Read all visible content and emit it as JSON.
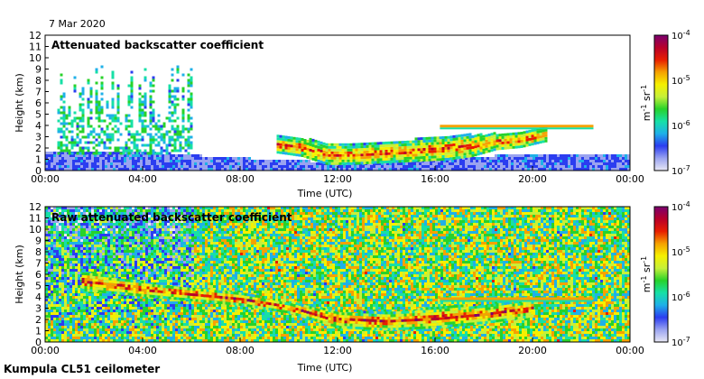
{
  "header": {
    "date": "7 Mar 2020",
    "footer": "Kumpula CL51 ceilometer"
  },
  "colors": {
    "frame": "#000000",
    "background": "#ffffff",
    "colormap": [
      "#e8e8f4",
      "#9aa3f0",
      "#2b3df0",
      "#1fb0e8",
      "#17e0a6",
      "#28d22a",
      "#c6f03a",
      "#f5f000",
      "#f5a100",
      "#e81e00",
      "#b8002a",
      "#7a0070"
    ]
  },
  "chart_data": [
    {
      "type": "heatmap",
      "title": "Attenuated backscatter coefficient",
      "xlabel": "Time (UTC)",
      "ylabel": "Height (km)",
      "xlim": [
        0,
        24
      ],
      "ylim": [
        0,
        12
      ],
      "x_ticks": [
        "00:00",
        "04:00",
        "08:00",
        "12:00",
        "16:00",
        "20:00",
        "00:00"
      ],
      "y_ticks": [
        "0",
        "1",
        "2",
        "3",
        "4",
        "5",
        "6",
        "7",
        "8",
        "9",
        "10",
        "11",
        "12"
      ],
      "colorbar": {
        "scale": "log",
        "range": [
          1e-07,
          0.0001
        ],
        "label_base": "m",
        "label_exp1": "-1",
        "label_mid": " sr",
        "label_exp2": "-1",
        "ticks": [
          {
            "base": "10",
            "exp": "-7"
          },
          {
            "base": "10",
            "exp": "-6"
          },
          {
            "base": "10",
            "exp": "-5"
          },
          {
            "base": "10",
            "exp": "-4"
          }
        ]
      },
      "features": [
        {
          "kind": "boundary_layer",
          "x": [
            0,
            4,
            8,
            10,
            12,
            16,
            20,
            24
          ],
          "top_km": [
            1.6,
            1.5,
            1.0,
            0.8,
            0.6,
            0.9,
            1.4,
            1.2
          ],
          "level": 0.15
        },
        {
          "kind": "cloud_layer",
          "x": [
            9.5,
            10.5,
            11.5,
            12.5,
            13.5,
            14.5,
            15.5,
            16.5,
            17.5,
            18.5,
            19.5,
            20.5
          ],
          "base_km": [
            1.5,
            1.2,
            0.5,
            0.5,
            0.6,
            0.7,
            0.8,
            0.9,
            1.2,
            1.8,
            2.0,
            2.5
          ],
          "top_km": [
            3.0,
            2.8,
            2.4,
            2.2,
            2.3,
            2.5,
            2.8,
            3.0,
            3.1,
            3.2,
            3.3,
            3.8
          ],
          "level": 0.8
        },
        {
          "kind": "thin_layer",
          "x_start": 16.2,
          "x_end": 22.5,
          "height_km": 3.9,
          "level": 0.7
        },
        {
          "kind": "precipitation_streaks",
          "x_start": 0.5,
          "x_end": 6.0,
          "top_km": 9.5,
          "level": 0.35
        }
      ]
    },
    {
      "type": "heatmap",
      "title": "Raw attenuated backscatter coefficient",
      "xlabel": "Time (UTC)",
      "ylabel": "Height (km)",
      "xlim": [
        0,
        24
      ],
      "ylim": [
        0,
        12
      ],
      "x_ticks": [
        "00:00",
        "04:00",
        "08:00",
        "12:00",
        "16:00",
        "20:00",
        "00:00"
      ],
      "y_ticks": [
        "0",
        "1",
        "2",
        "3",
        "4",
        "5",
        "6",
        "7",
        "8",
        "9",
        "10",
        "11",
        "12"
      ],
      "colorbar": {
        "scale": "log",
        "range": [
          1e-07,
          0.0001
        ],
        "label_base": "m",
        "label_exp1": "-1",
        "label_mid": " sr",
        "label_exp2": "-1",
        "ticks": [
          {
            "base": "10",
            "exp": "-7"
          },
          {
            "base": "10",
            "exp": "-6"
          },
          {
            "base": "10",
            "exp": "-5"
          },
          {
            "base": "10",
            "exp": "-4"
          }
        ]
      },
      "features": [
        {
          "kind": "noise_background",
          "x_start": 0,
          "x_end": 24,
          "level": 0.5
        },
        {
          "kind": "cloud_layer",
          "x": [
            1.5,
            4.0,
            6.0,
            8.0,
            10.0,
            12.0,
            14.0,
            16.0,
            18.0,
            20.0
          ],
          "base_km": [
            4.5,
            4.0,
            3.6,
            3.2,
            2.5,
            1.2,
            1.0,
            1.2,
            1.6,
            2.2
          ],
          "top_km": [
            6.2,
            5.2,
            4.8,
            4.2,
            3.4,
            2.6,
            2.5,
            3.0,
            3.2,
            3.5
          ],
          "level": 0.85
        },
        {
          "kind": "thin_layer",
          "x_start": 16.2,
          "x_end": 22.5,
          "height_km": 3.8,
          "level": 0.75
        }
      ]
    }
  ]
}
